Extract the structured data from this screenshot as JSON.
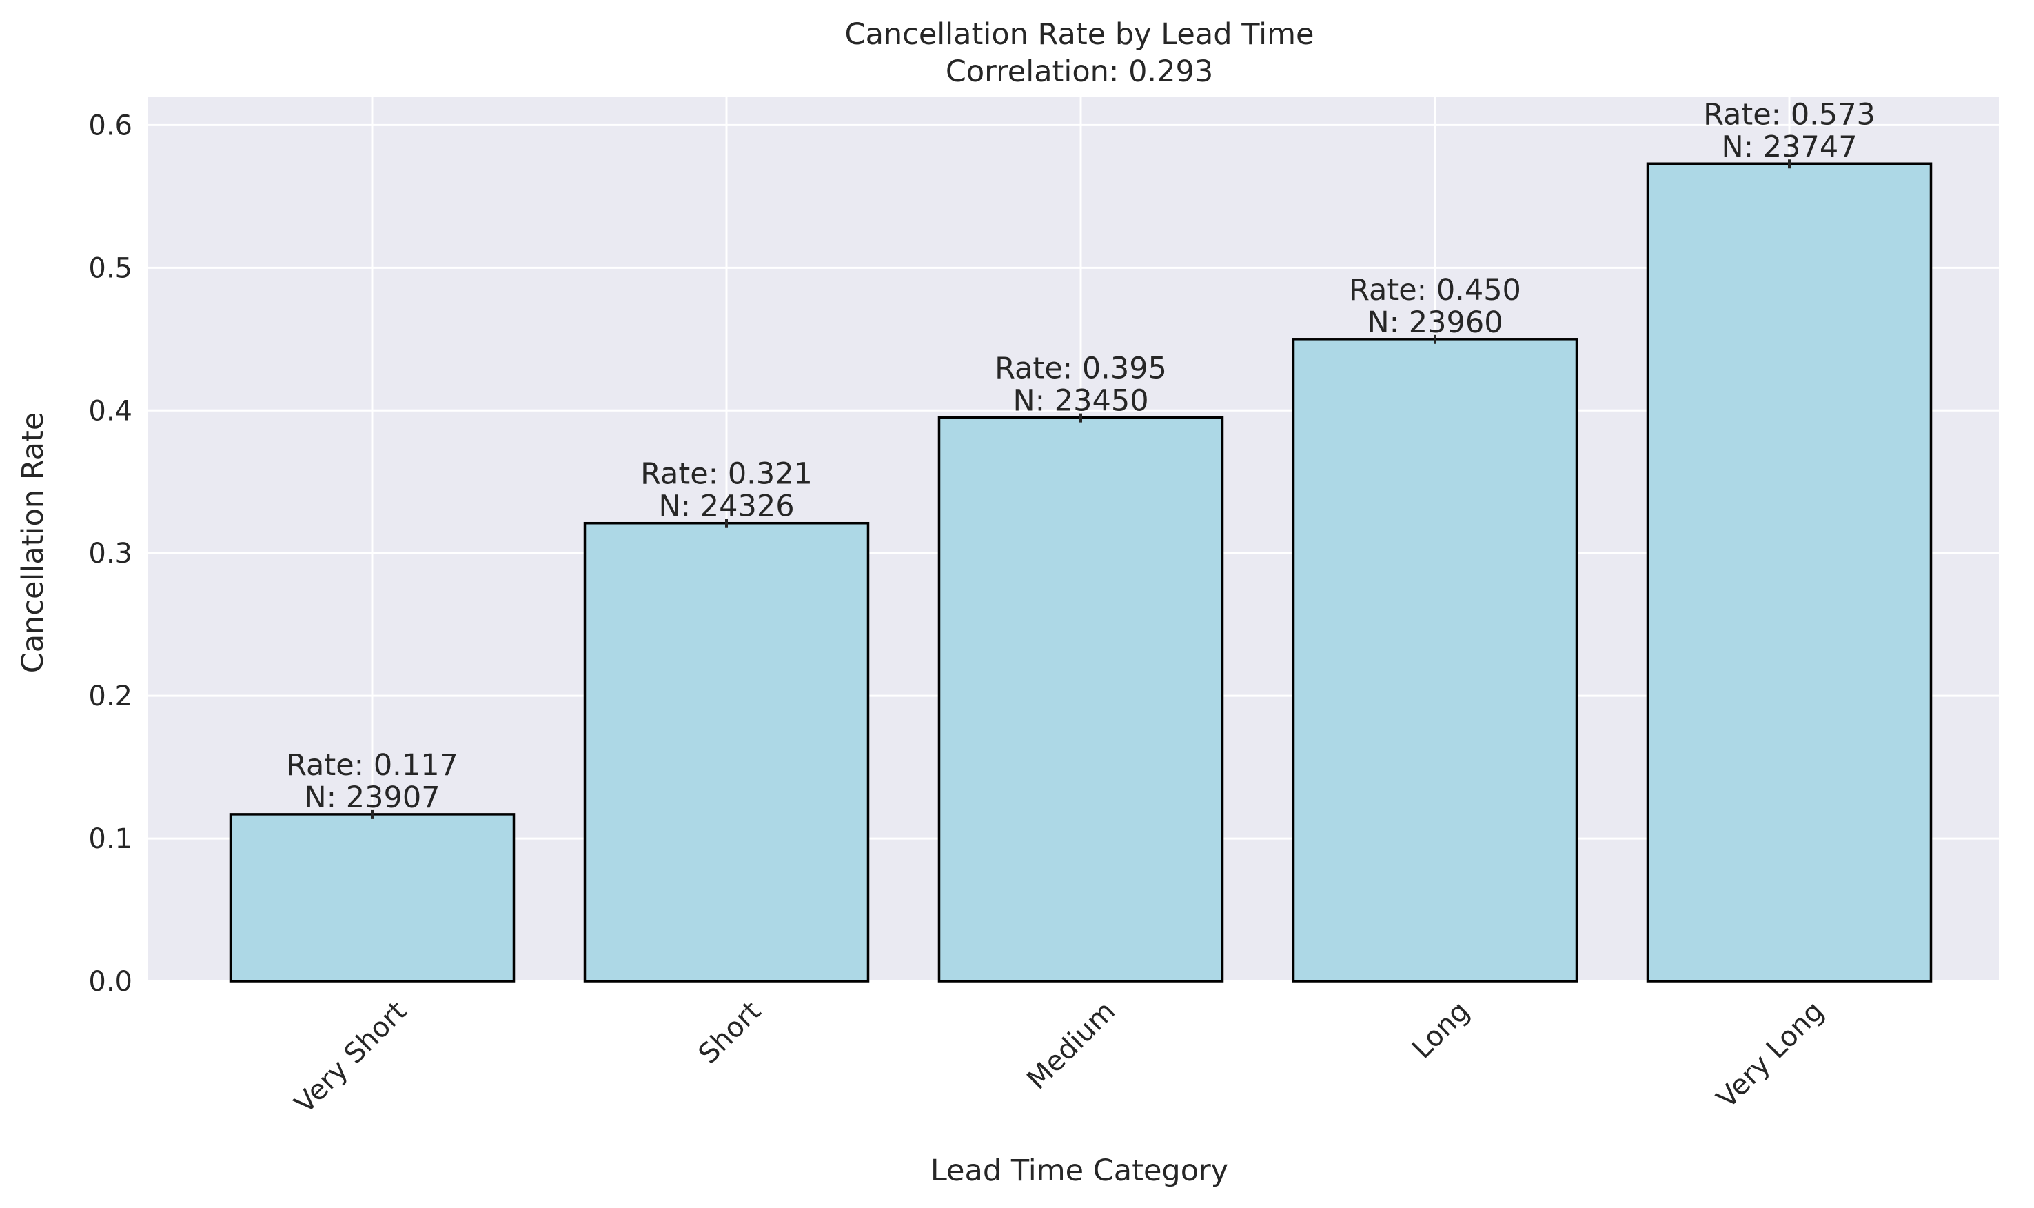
{
  "chart_data": {
    "type": "bar",
    "title": "Cancellation Rate by Lead Time",
    "subtitle": "Correlation: 0.293",
    "xlabel": "Lead Time Category",
    "ylabel": "Cancellation Rate",
    "ylim": [
      0,
      0.62
    ],
    "yticks": [
      0.0,
      0.1,
      0.2,
      0.3,
      0.4,
      0.5,
      0.6
    ],
    "ytick_labels": [
      "0.0",
      "0.1",
      "0.2",
      "0.3",
      "0.4",
      "0.5",
      "0.6"
    ],
    "categories": [
      "Very Short",
      "Short",
      "Medium",
      "Long",
      "Very Long"
    ],
    "values": [
      0.117,
      0.321,
      0.395,
      0.45,
      0.573
    ],
    "counts": [
      23907,
      24326,
      23450,
      23960,
      23747
    ],
    "bar_labels": [
      {
        "rate": "Rate: 0.117",
        "n": "N: 23907"
      },
      {
        "rate": "Rate: 0.321",
        "n": "N: 24326"
      },
      {
        "rate": "Rate: 0.395",
        "n": "N: 23450"
      },
      {
        "rate": "Rate: 0.450",
        "n": "N: 23960"
      },
      {
        "rate": "Rate: 0.573",
        "n": "N: 23747"
      }
    ],
    "error_bars": true,
    "grid": true,
    "legend": "none",
    "colors": {
      "bar_fill": "#add8e6",
      "bar_edge": "#000000",
      "plot_background": "#eaeaf2",
      "grid": "#ffffff",
      "text": "#262626"
    }
  }
}
